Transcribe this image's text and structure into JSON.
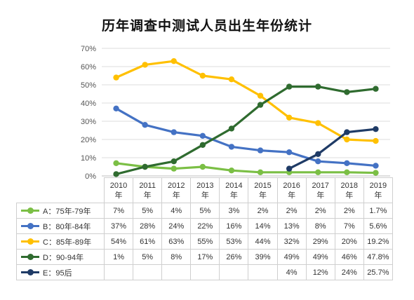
{
  "title": "历年调查中测试人员出生年份统计",
  "chart_data": {
    "type": "line",
    "title": "历年调查中测试人员出生年份统计",
    "y_ticks": [
      "0%",
      "10%",
      "20%",
      "30%",
      "40%",
      "50%",
      "60%",
      "70%"
    ],
    "ylim": [
      0,
      70
    ],
    "grid": true,
    "categories": [
      {
        "year": "2010",
        "suffix": "年"
      },
      {
        "year": "2011",
        "suffix": "年"
      },
      {
        "year": "2012",
        "suffix": "年"
      },
      {
        "year": "2013",
        "suffix": "年"
      },
      {
        "year": "2014",
        "suffix": "年"
      },
      {
        "year": "2015",
        "suffix": "年"
      },
      {
        "year": "2016",
        "suffix": "年"
      },
      {
        "year": "2017",
        "suffix": "年"
      },
      {
        "year": "2018",
        "suffix": "年"
      },
      {
        "year": "2019",
        "suffix": "年"
      }
    ],
    "series": [
      {
        "name": "A：75年-79年",
        "color": "#7bbf45",
        "values": [
          7,
          5,
          4,
          5,
          3,
          2,
          2,
          2,
          2,
          1.7
        ],
        "labels": [
          "7%",
          "5%",
          "4%",
          "5%",
          "3%",
          "2%",
          "2%",
          "2%",
          "2%",
          "1.7%"
        ]
      },
      {
        "name": "B：80年-84年",
        "color": "#4472c4",
        "values": [
          37,
          28,
          24,
          22,
          16,
          14,
          13,
          8,
          7,
          5.6
        ],
        "labels": [
          "37%",
          "28%",
          "24%",
          "22%",
          "16%",
          "14%",
          "13%",
          "8%",
          "7%",
          "5.6%"
        ]
      },
      {
        "name": "C：85年-89年",
        "color": "#ffc000",
        "values": [
          54,
          61,
          63,
          55,
          53,
          44,
          32,
          29,
          20,
          19.2
        ],
        "labels": [
          "54%",
          "61%",
          "63%",
          "55%",
          "53%",
          "44%",
          "32%",
          "29%",
          "20%",
          "19.2%"
        ]
      },
      {
        "name": "D：90-94年",
        "color": "#2f6b2f",
        "values": [
          1,
          5,
          8,
          17,
          26,
          39,
          49,
          49,
          46,
          47.8
        ],
        "labels": [
          "1%",
          "5%",
          "8%",
          "17%",
          "26%",
          "39%",
          "49%",
          "49%",
          "46%",
          "47.8%"
        ]
      },
      {
        "name": "E：95后",
        "color": "#1f3b66",
        "values": [
          null,
          null,
          null,
          null,
          null,
          null,
          4,
          12,
          24,
          25.7
        ],
        "labels": [
          "",
          "",
          "",
          "",
          "",
          "",
          "4%",
          "12%",
          "24%",
          "25.7%"
        ]
      }
    ]
  }
}
